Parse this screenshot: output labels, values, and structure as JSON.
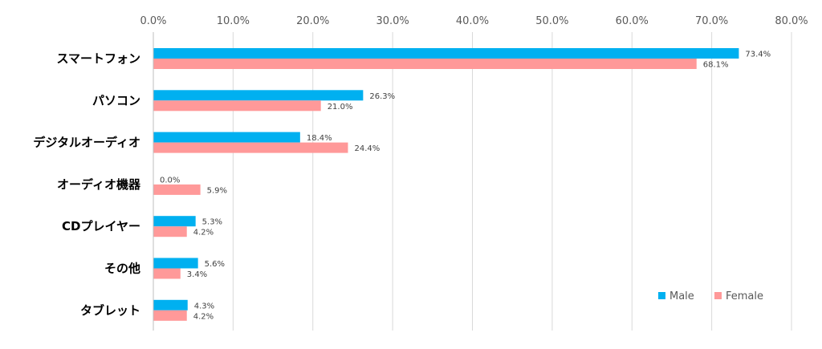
{
  "chart_data": {
    "type": "bar",
    "orientation": "horizontal",
    "categories": [
      "スマートフォン",
      "パソコン",
      "デジタルオーディオ",
      "オーディオ機器",
      "CDプレイヤー",
      "その他",
      "タブレット"
    ],
    "series": [
      {
        "name": "Male",
        "color": "#00B0F0",
        "values": [
          73.4,
          26.3,
          18.4,
          0.0,
          5.3,
          5.6,
          4.3
        ],
        "labels": [
          "73.4%",
          "26.3%",
          "18.4%",
          "0.0%",
          "5.3%",
          "5.6%",
          "4.3%"
        ]
      },
      {
        "name": "Female",
        "color": "#FF9999",
        "values": [
          68.1,
          21.0,
          24.4,
          5.9,
          4.2,
          3.4,
          4.2
        ],
        "labels": [
          "68.1%",
          "21.0%",
          "24.4%",
          "5.9%",
          "4.2%",
          "3.4%",
          "4.2%"
        ]
      }
    ],
    "xlim": [
      0,
      80
    ],
    "x_ticks": [
      "0.0%",
      "10.0%",
      "20.0%",
      "30.0%",
      "40.0%",
      "50.0%",
      "60.0%",
      "70.0%",
      "80.0%"
    ],
    "x_axis_position": "top",
    "grid": true,
    "legend": "bottom-right",
    "title": "",
    "xlabel": "",
    "ylabel": ""
  }
}
